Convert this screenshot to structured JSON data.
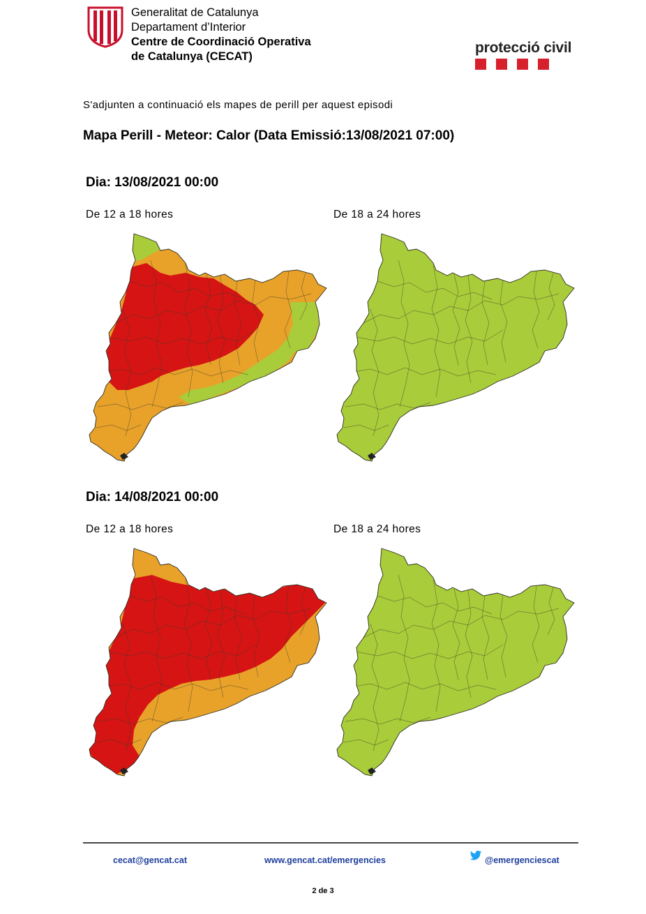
{
  "header": {
    "org_line1": "Generalitat de Catalunya",
    "org_line2": "Departament d’Interior",
    "org_line3": "Centre de Coordinació Operativa",
    "org_line4": "de Catalunya (CECAT)",
    "brand": "protecció civil",
    "brand_color": "#d6202c",
    "shield_color": "#c8102e"
  },
  "intro": "S'adjunten a continuació els mapes de perill per aquest episodi",
  "title": "Mapa Perill - Meteor: Calor (Data Emissió:13/08/2021 07:00)",
  "legend_colors": {
    "green": "#a9cc3a",
    "orange": "#e8a22a",
    "red": "#d61414"
  },
  "days": [
    {
      "label": "Dia: 13/08/2021 00:00",
      "slots": [
        {
          "label": "De 12 a 18 hores",
          "hazard": [
            "red",
            "orange",
            "green"
          ]
        },
        {
          "label": "De 18 a 24 hores",
          "hazard": [
            "green"
          ]
        }
      ]
    },
    {
      "label": "Dia: 14/08/2021 00:00",
      "slots": [
        {
          "label": "De 12 a 18 hores",
          "hazard": [
            "red",
            "orange"
          ]
        },
        {
          "label": "De 18 a 24 hores",
          "hazard": [
            "green"
          ]
        }
      ]
    }
  ],
  "footer": {
    "email": "cecat@gencat.cat",
    "website": "www.gencat.cat/emergencies",
    "twitter": "@emergenciescat",
    "page": "2 de 3",
    "link_color": "#1f3f9c"
  }
}
